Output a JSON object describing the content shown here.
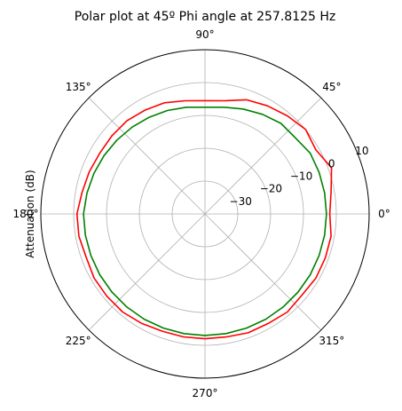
{
  "chart_data": {
    "type": "line",
    "projection": "polar",
    "title": "Polar plot at 45º Phi angle at 257.8125 Hz",
    "ylabel": "Attenuation (dB)",
    "rlim": [
      -40,
      10
    ],
    "r_ticks": [
      -30,
      -20,
      -10,
      0,
      10
    ],
    "r_tick_labels": [
      "−30",
      "−20",
      "−10",
      "0",
      "10"
    ],
    "theta_ticks": [
      0,
      45,
      90,
      135,
      180,
      225,
      270,
      315
    ],
    "theta_tick_labels": [
      "0°",
      "45°",
      "90°",
      "135°",
      "180°",
      "225°",
      "270°",
      "315°"
    ],
    "grid": true,
    "x": [
      0,
      10,
      20,
      30,
      40,
      50,
      60,
      70,
      80,
      90,
      100,
      110,
      120,
      130,
      140,
      150,
      160,
      170,
      180,
      190,
      200,
      210,
      220,
      230,
      240,
      250,
      260,
      270,
      280,
      290,
      300,
      310,
      320,
      330,
      340,
      350
    ],
    "series": [
      {
        "color": "#008000",
        "values": [
          -3,
          -3,
          -3,
          -3,
          -4,
          -4,
          -5,
          -6,
          -7,
          -7.5,
          -7,
          -6.5,
          -6,
          -5.5,
          -5,
          -4.5,
          -4,
          -3.5,
          -3,
          -3,
          -3,
          -3,
          -3,
          -3,
          -3,
          -3,
          -3,
          -3,
          -3,
          -3,
          -3,
          -3,
          -3,
          -3,
          -3,
          -3
        ]
      },
      {
        "color": "#ff0000",
        "values": [
          -2,
          -1,
          1,
          -1,
          0,
          -1,
          -2,
          -3,
          -5,
          -5.5,
          -5,
          -4,
          -3.5,
          -3,
          -3,
          -3,
          -2.5,
          -2,
          -1,
          -1,
          -1.5,
          -1,
          -1,
          -1,
          -1.5,
          -2,
          -2,
          -2,
          -2,
          -1.5,
          -1.5,
          -1,
          -1.5,
          -1,
          -1,
          -1
        ]
      }
    ]
  }
}
